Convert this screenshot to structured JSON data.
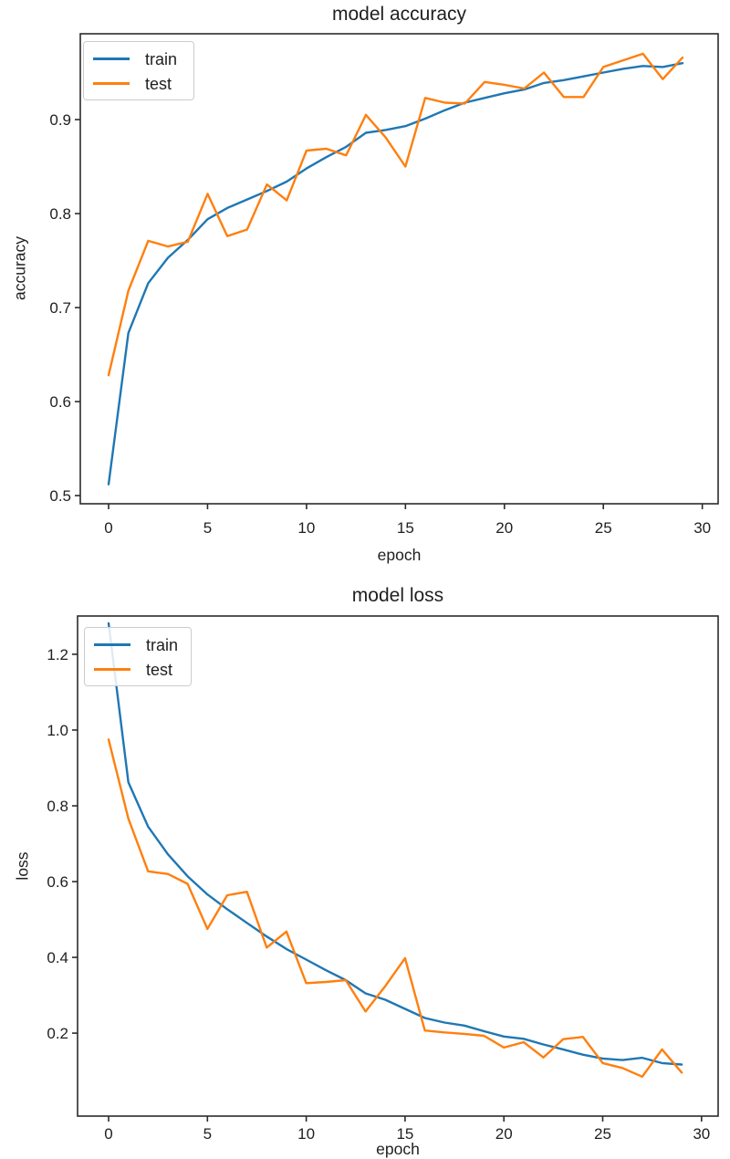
{
  "figure": {
    "background": "#ffffff",
    "text_color": "#1f1f1f",
    "spine_color": "#2b2b2b"
  },
  "chart_data": [
    {
      "type": "line",
      "title": "model accuracy",
      "xlabel": "epoch",
      "ylabel": "accuracy",
      "grid": false,
      "legend": {
        "position": "upper left",
        "entries": [
          "train",
          "test"
        ]
      },
      "x": [
        0,
        1,
        2,
        3,
        4,
        5,
        6,
        7,
        8,
        9,
        10,
        11,
        12,
        13,
        14,
        15,
        16,
        17,
        18,
        19,
        20,
        21,
        22,
        23,
        24,
        25,
        26,
        27,
        28,
        29
      ],
      "xlim": [
        -1.43,
        30.8
      ],
      "ylim": [
        0.4913,
        0.9913
      ],
      "x_ticks": [
        0,
        5,
        10,
        15,
        20,
        25,
        30
      ],
      "x_tick_labels": [
        "0",
        "5",
        "10",
        "15",
        "20",
        "25",
        "30"
      ],
      "y_ticks": [
        0.5,
        0.6,
        0.7,
        0.8,
        0.9
      ],
      "y_tick_labels": [
        "0.5",
        "0.6",
        "0.7",
        "0.8",
        "0.9"
      ],
      "series": [
        {
          "name": "train",
          "color": "#1f77b4",
          "values": [
            0.512,
            0.673,
            0.726,
            0.753,
            0.772,
            0.794,
            0.806,
            0.815,
            0.824,
            0.834,
            0.848,
            0.86,
            0.871,
            0.886,
            0.889,
            0.893,
            0.901,
            0.91,
            0.918,
            0.923,
            0.928,
            0.932,
            0.939,
            0.942,
            0.946,
            0.95,
            0.954,
            0.957,
            0.956,
            0.96
          ]
        },
        {
          "name": "test",
          "color": "#ff7f0e",
          "values": [
            0.628,
            0.718,
            0.771,
            0.765,
            0.77,
            0.821,
            0.776,
            0.783,
            0.831,
            0.814,
            0.867,
            0.869,
            0.862,
            0.905,
            0.881,
            0.85,
            0.923,
            0.918,
            0.917,
            0.94,
            0.937,
            0.933,
            0.95,
            0.924,
            0.924,
            0.956,
            0.963,
            0.97,
            0.943,
            0.966
          ]
        }
      ]
    },
    {
      "type": "line",
      "title": "model loss",
      "xlabel": "epoch",
      "ylabel": "loss",
      "grid": false,
      "legend": {
        "position": "upper left",
        "entries": [
          "train",
          "test"
        ]
      },
      "x": [
        0,
        1,
        2,
        3,
        4,
        5,
        6,
        7,
        8,
        9,
        10,
        11,
        12,
        13,
        14,
        15,
        16,
        17,
        18,
        19,
        20,
        21,
        22,
        23,
        24,
        25,
        26,
        27,
        28,
        29
      ],
      "xlim": [
        -1.57,
        30.84
      ],
      "ylim": [
        -0.019,
        1.301
      ],
      "x_ticks": [
        0,
        5,
        10,
        15,
        20,
        25,
        30
      ],
      "x_tick_labels": [
        "0",
        "5",
        "10",
        "15",
        "20",
        "25",
        "30"
      ],
      "y_ticks": [
        0.2,
        0.4,
        0.6,
        0.8,
        1.0,
        1.2
      ],
      "y_tick_labels": [
        "0.2",
        "0.4",
        "0.6",
        "0.8",
        "1.0",
        "1.2"
      ],
      "series": [
        {
          "name": "train",
          "color": "#1f77b4",
          "values": [
            1.282,
            0.862,
            0.745,
            0.672,
            0.614,
            0.566,
            0.527,
            0.491,
            0.455,
            0.422,
            0.394,
            0.366,
            0.34,
            0.305,
            0.288,
            0.264,
            0.24,
            0.228,
            0.22,
            0.205,
            0.191,
            0.185,
            0.17,
            0.157,
            0.143,
            0.133,
            0.129,
            0.135,
            0.121,
            0.117
          ]
        },
        {
          "name": "test",
          "color": "#ff7f0e",
          "values": [
            0.975,
            0.766,
            0.627,
            0.62,
            0.594,
            0.475,
            0.564,
            0.573,
            0.426,
            0.468,
            0.332,
            0.335,
            0.34,
            0.257,
            0.324,
            0.398,
            0.207,
            0.202,
            0.198,
            0.193,
            0.162,
            0.176,
            0.136,
            0.184,
            0.19,
            0.121,
            0.108,
            0.085,
            0.157,
            0.096
          ]
        }
      ]
    }
  ]
}
